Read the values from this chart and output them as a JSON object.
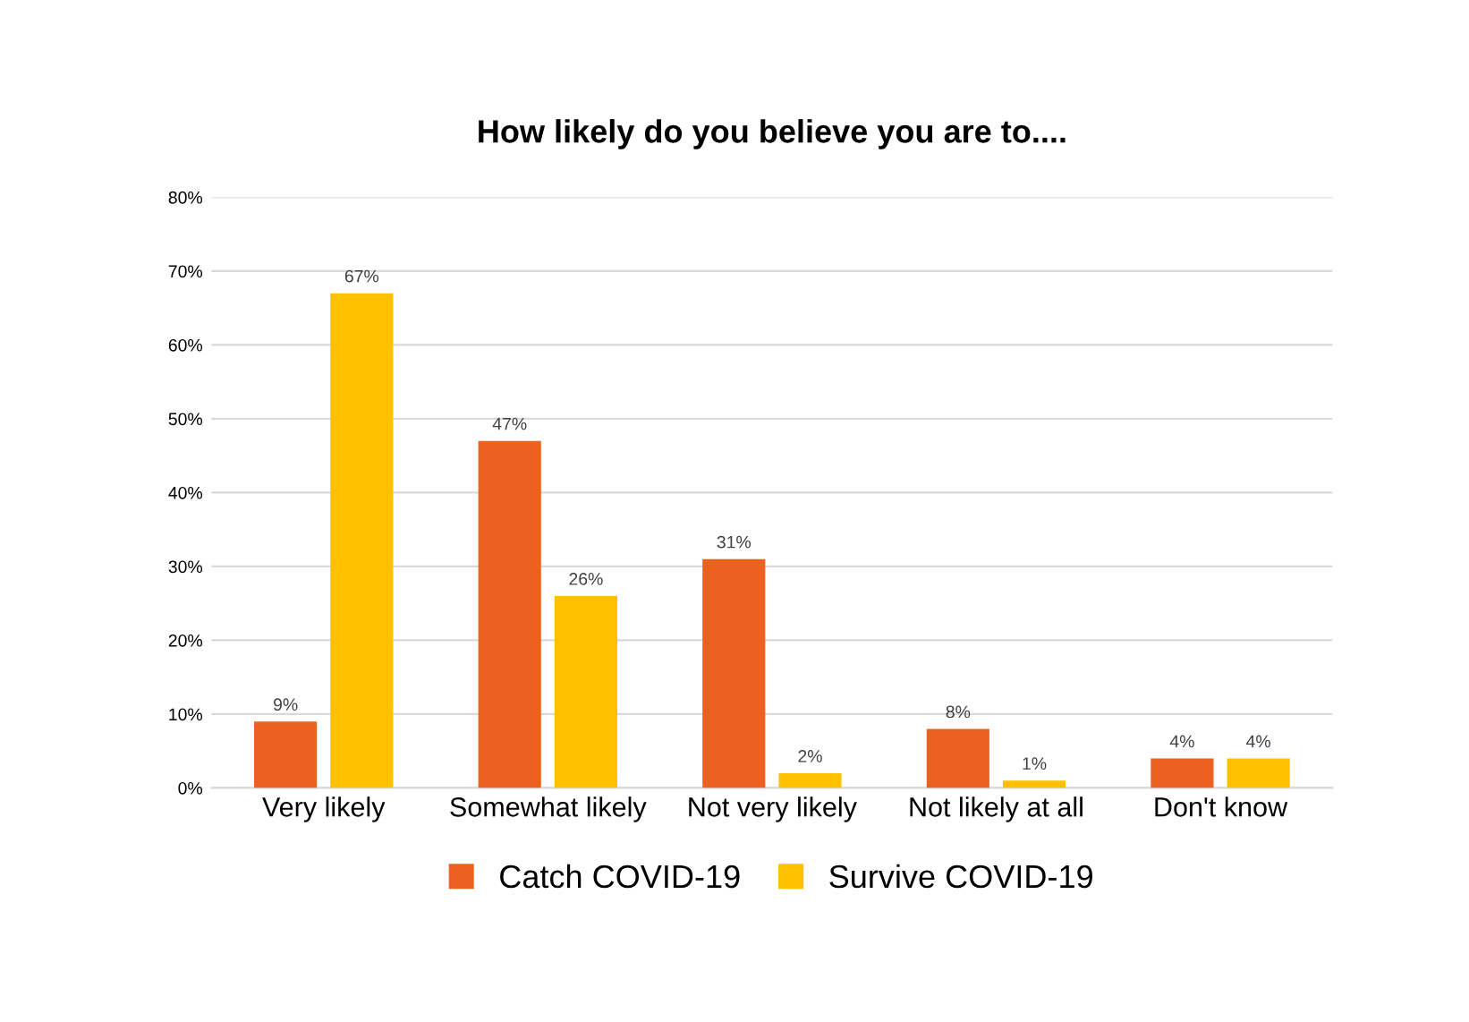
{
  "chart_data": {
    "type": "bar",
    "title": "How likely do you believe you are to....",
    "categories": [
      "Very likely",
      "Somewhat likely",
      "Not very likely",
      "Not likely at all",
      "Don't know"
    ],
    "series": [
      {
        "name": "Catch COVID-19",
        "color": "#eb6220",
        "values": [
          9,
          47,
          31,
          8,
          4
        ],
        "value_labels": [
          "9%",
          "47%",
          "31%",
          "8%",
          "4%"
        ]
      },
      {
        "name": "Survive COVID-19",
        "color": "#ffc000",
        "values": [
          67,
          26,
          2,
          1,
          4
        ],
        "value_labels": [
          "67%",
          "26%",
          "2%",
          "1%",
          "4%"
        ]
      }
    ],
    "ylim": [
      0,
      80
    ],
    "yticks": [
      {
        "value": 0,
        "label": "0%"
      },
      {
        "value": 10,
        "label": "10%"
      },
      {
        "value": 20,
        "label": "20%"
      },
      {
        "value": 30,
        "label": "30%"
      },
      {
        "value": 40,
        "label": "40%"
      },
      {
        "value": 50,
        "label": "50%"
      },
      {
        "value": 60,
        "label": "60%"
      },
      {
        "value": 70,
        "label": "70%"
      },
      {
        "value": 80,
        "label": "80%"
      }
    ],
    "grid": "y",
    "legend": "bottom"
  }
}
